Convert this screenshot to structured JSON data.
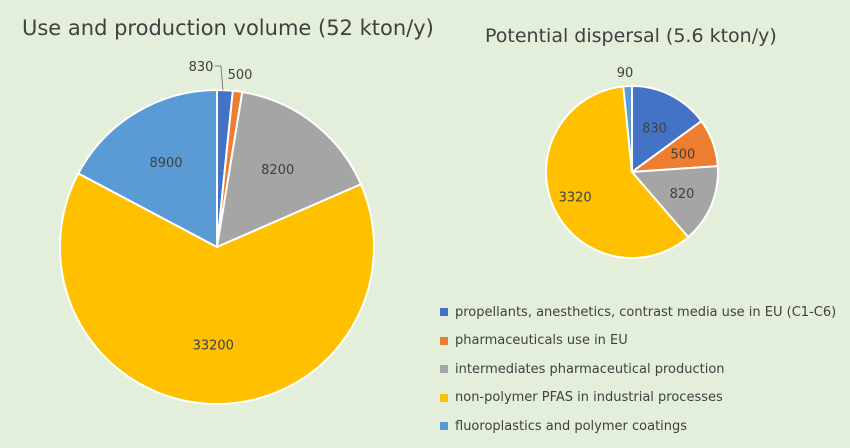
{
  "colors": [
    "#4472c4",
    "#ed7d31",
    "#a5a5a5",
    "#ffc000",
    "#5b9bd5"
  ],
  "legend": [
    "propellants, anesthetics, contrast media use in EU (C1-C6)",
    "pharmaceuticals use in EU",
    "intermediates pharmaceutical production",
    "non-polymer PFAS in industrial processes",
    "fluoroplastics and polymer coatings"
  ],
  "chart_data": [
    {
      "type": "pie",
      "title": "Use and production volume (52 kton/y)",
      "categories": [
        "propellants, anesthetics, contrast media use in EU (C1-C6)",
        "pharmaceuticals use in EU",
        "intermediates pharmaceutical production",
        "non-polymer PFAS in industrial processes",
        "fluoroplastics and polymer coatings"
      ],
      "values": [
        830,
        500,
        8200,
        33200,
        8900
      ],
      "labels": [
        "830",
        "500",
        "8200",
        "33200",
        "8900"
      ]
    },
    {
      "type": "pie",
      "title": "Potential dispersal (5.6 kton/y)",
      "categories": [
        "propellants, anesthetics, contrast media use in EU (C1-C6)",
        "pharmaceuticals use in EU",
        "intermediates pharmaceutical production",
        "non-polymer PFAS in industrial processes",
        "fluoroplastics and polymer coatings"
      ],
      "values": [
        830,
        500,
        820,
        3320,
        90
      ],
      "labels": [
        "830",
        "500",
        "820",
        "3320",
        "90"
      ]
    }
  ]
}
